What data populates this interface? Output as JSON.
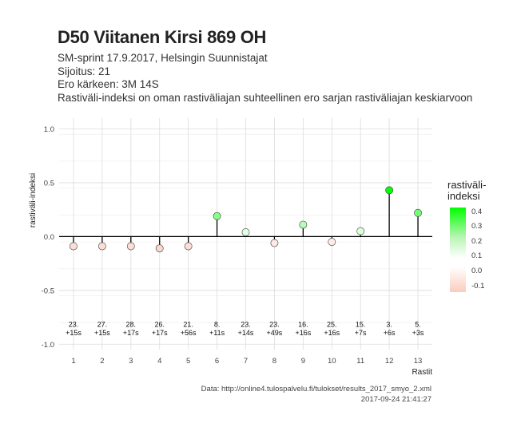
{
  "title": "D50 Viitanen Kirsi 869 OH",
  "subtitle_lines": [
    "SM-sprint 17.9.2017, Helsingin Suunnistajat",
    "Sijoitus: 21",
    "Ero kärkeen: 3M 14S",
    "Rastiväli-indeksi on oman rastiväliajan suhteellinen ero sarjan rastiväliajan keskiarvoon"
  ],
  "caption_lines": [
    "Data: http://online4.tulospalvelu.fi/tulokset/results_2017_smyo_2.xml",
    "2017-09-24 21:41:27"
  ],
  "legend": {
    "title_lines": [
      "rastiväli-",
      "indeksi"
    ],
    "tick_labels": [
      "0.4",
      "0.3",
      "0.2",
      "0.1",
      "0.0",
      "-0.1"
    ],
    "tick_values": [
      0.4,
      0.3,
      0.2,
      0.1,
      0.0,
      -0.1
    ],
    "range": [
      -0.14,
      0.43
    ],
    "colors": [
      "#00ff00",
      "#ffffff",
      "#f9cdbd"
    ]
  },
  "chart_data": {
    "type": "scatter",
    "style": "lollipop",
    "xlabel": "Rastit",
    "ylabel": "rastiväli-indeksi",
    "ylim": [
      -1.05,
      1.1
    ],
    "yticks": [
      -1.0,
      -0.5,
      0.0,
      0.5,
      1.0
    ],
    "ytick_labels": [
      "-1.0",
      "-0.5",
      "0.0",
      "0.5",
      "1.0"
    ],
    "grid": true,
    "legend_position": "right",
    "x": [
      1,
      2,
      3,
      4,
      5,
      6,
      7,
      8,
      9,
      10,
      11,
      12,
      13
    ],
    "xtick_labels": [
      "1",
      "2",
      "3",
      "4",
      "5",
      "6",
      "7",
      "8",
      "9",
      "10",
      "11",
      "12",
      "13"
    ],
    "values": [
      -0.09,
      -0.09,
      -0.09,
      -0.11,
      -0.09,
      0.19,
      0.04,
      -0.06,
      0.11,
      -0.05,
      0.05,
      0.43,
      0.22
    ],
    "annotations": [
      {
        "rank": "23.",
        "time": "+15s"
      },
      {
        "rank": "27.",
        "time": "+15s"
      },
      {
        "rank": "28.",
        "time": "+17s"
      },
      {
        "rank": "26.",
        "time": "+17s"
      },
      {
        "rank": "21.",
        "time": "+56s"
      },
      {
        "rank": "8.",
        "time": "+11s"
      },
      {
        "rank": "23.",
        "time": "+14s"
      },
      {
        "rank": "23.",
        "time": "+49s"
      },
      {
        "rank": "16.",
        "time": "+16s"
      },
      {
        "rank": "25.",
        "time": "+16s"
      },
      {
        "rank": "15.",
        "time": "+7s"
      },
      {
        "rank": "3.",
        "time": "+6s"
      },
      {
        "rank": "5.",
        "time": "+3s"
      }
    ]
  }
}
